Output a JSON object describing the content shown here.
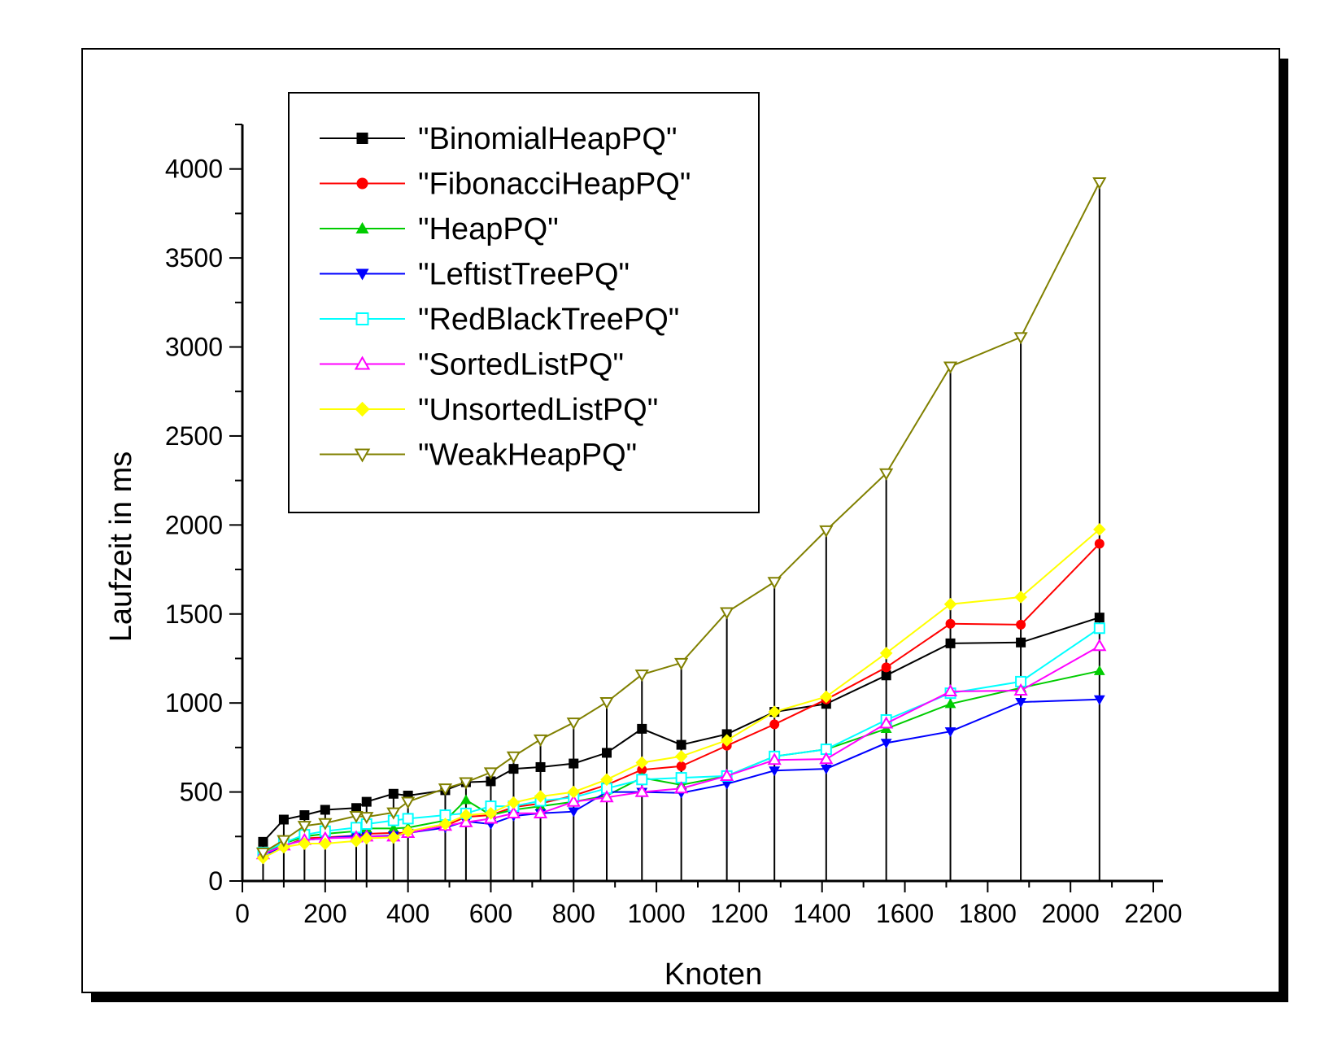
{
  "chart_data": {
    "type": "line",
    "title": "",
    "xlabel": "Knoten",
    "ylabel": "Laufzeit in ms",
    "xlim": [
      0,
      2200
    ],
    "ylim": [
      0,
      4250
    ],
    "x_ticks": [
      "0",
      "200",
      "400",
      "600",
      "800",
      "1000",
      "1200",
      "1400",
      "1600",
      "1800",
      "2000",
      "2200"
    ],
    "y_ticks": [
      "0",
      "500",
      "1000",
      "1500",
      "2000",
      "2500",
      "3000",
      "3500",
      "4000"
    ],
    "legend_position": "top-left",
    "grid": false,
    "x": [
      50,
      100,
      150,
      200,
      275,
      300,
      365,
      400,
      490,
      540,
      600,
      655,
      720,
      800,
      880,
      965,
      1060,
      1170,
      1285,
      1410,
      1555,
      1710,
      1880,
      2070
    ],
    "series": [
      {
        "name": "\"BinomialHeapPQ\"",
        "color": "#000000",
        "marker": "square-filled",
        "values": [
          220,
          345,
          370,
          400,
          410,
          445,
          490,
          480,
          510,
          555,
          560,
          630,
          640,
          660,
          720,
          855,
          765,
          825,
          950,
          995,
          1155,
          1335,
          1340,
          1480
        ]
      },
      {
        "name": "\"FibonacciHeapPQ\"",
        "color": "#ff0000",
        "marker": "circle-filled",
        "values": [
          150,
          195,
          240,
          245,
          255,
          265,
          270,
          270,
          310,
          360,
          370,
          415,
          435,
          480,
          540,
          625,
          645,
          760,
          880,
          1020,
          1200,
          1445,
          1440,
          1895
        ]
      },
      {
        "name": "\"HeapPQ\"",
        "color": "#00cc00",
        "marker": "triangle-up-filled",
        "values": [
          155,
          210,
          250,
          265,
          280,
          295,
          295,
          300,
          340,
          455,
          370,
          400,
          420,
          445,
          480,
          580,
          540,
          590,
          700,
          740,
          855,
          995,
          1085,
          1180
        ]
      },
      {
        "name": "\"LeftistTreePQ\"",
        "color": "#0000ff",
        "marker": "triangle-down-filled",
        "values": [
          140,
          200,
          230,
          240,
          255,
          250,
          255,
          270,
          300,
          335,
          320,
          365,
          380,
          390,
          500,
          500,
          495,
          545,
          620,
          630,
          775,
          840,
          1005,
          1020
        ]
      },
      {
        "name": "\"RedBlackTreePQ\"",
        "color": "#00ffff",
        "marker": "square-open",
        "values": [
          160,
          215,
          260,
          280,
          300,
          320,
          340,
          350,
          370,
          380,
          420,
          420,
          450,
          470,
          520,
          570,
          580,
          590,
          700,
          740,
          905,
          1055,
          1120,
          1420
        ]
      },
      {
        "name": "\"SortedListPQ\"",
        "color": "#ff00ff",
        "marker": "triangle-up-open",
        "values": [
          150,
          200,
          230,
          240,
          245,
          250,
          250,
          270,
          310,
          330,
          350,
          380,
          380,
          445,
          470,
          500,
          520,
          590,
          680,
          685,
          885,
          1065,
          1070,
          1320
        ]
      },
      {
        "name": "\"UnsortedListPQ\"",
        "color": "#ffff00",
        "marker": "diamond-filled",
        "values": [
          130,
          190,
          210,
          210,
          225,
          240,
          245,
          280,
          320,
          370,
          380,
          440,
          475,
          500,
          570,
          665,
          700,
          790,
          950,
          1035,
          1280,
          1555,
          1595,
          1975
        ]
      },
      {
        "name": "\"WeakHeapPQ\"",
        "color": "#808000",
        "marker": "triangle-down-open",
        "values": [
          160,
          230,
          310,
          325,
          365,
          360,
          385,
          445,
          520,
          555,
          610,
          700,
          795,
          890,
          1005,
          1160,
          1225,
          1510,
          1680,
          1970,
          2290,
          2890,
          3055,
          3925
        ]
      }
    ]
  }
}
